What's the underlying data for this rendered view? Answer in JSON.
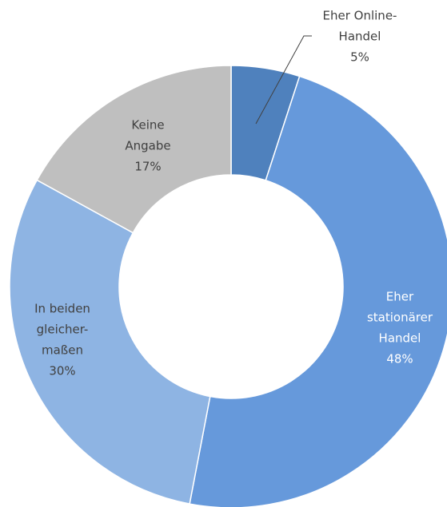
{
  "chart_data": {
    "type": "donut",
    "categories": [
      [
        "Eher Online-",
        "Handel"
      ],
      [
        "Eher",
        "stationärer",
        "Handel"
      ],
      [
        "In beiden",
        "gleicher-",
        "maßen"
      ],
      [
        "Keine",
        "Angabe"
      ]
    ],
    "values": [
      5,
      48,
      30,
      17
    ],
    "value_labels": [
      "5%",
      "48%",
      "30%",
      "17%"
    ],
    "colors": [
      "#4f81bd",
      "#6699db",
      "#8eb4e3",
      "#bfbfbf"
    ]
  }
}
